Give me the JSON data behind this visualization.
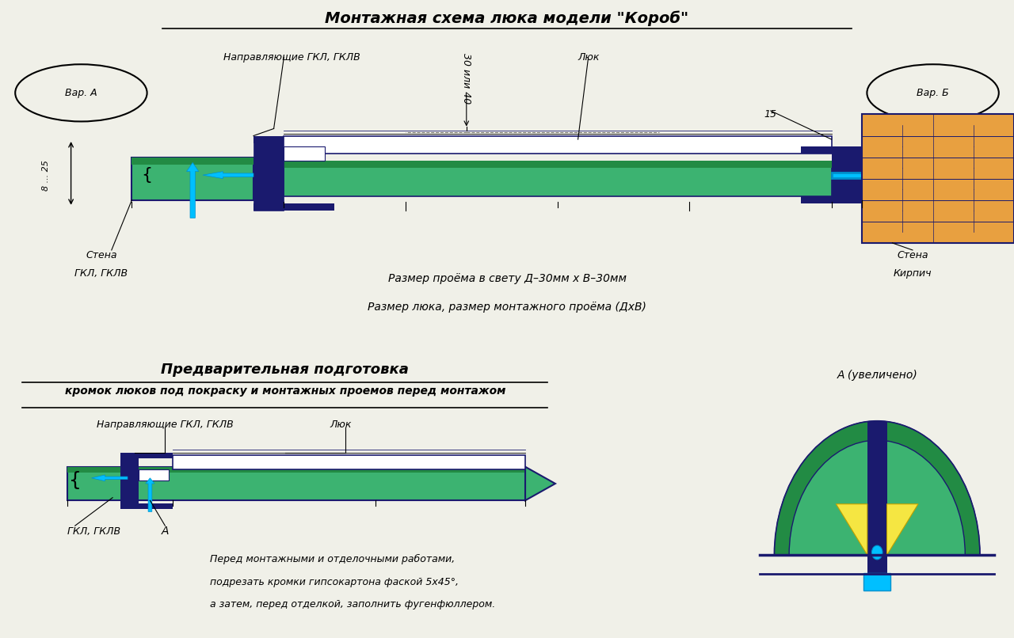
{
  "bg_color": "#f0f0e8",
  "title1": "Монтажная схема люка модели \"Короб\"",
  "title2_line1": "Предварительная подготовка",
  "title2_line2": "кромок люков под покраску и монтажных проемов перед монтажом",
  "green_color": "#3cb371",
  "dark_green": "#228B44",
  "dark_blue": "#1a1a6e",
  "cyan_color": "#00bfff",
  "cyan_dark": "#0090cc",
  "orange_color": "#e8a040",
  "white_color": "#ffffff",
  "yellow_color": "#f5e642"
}
